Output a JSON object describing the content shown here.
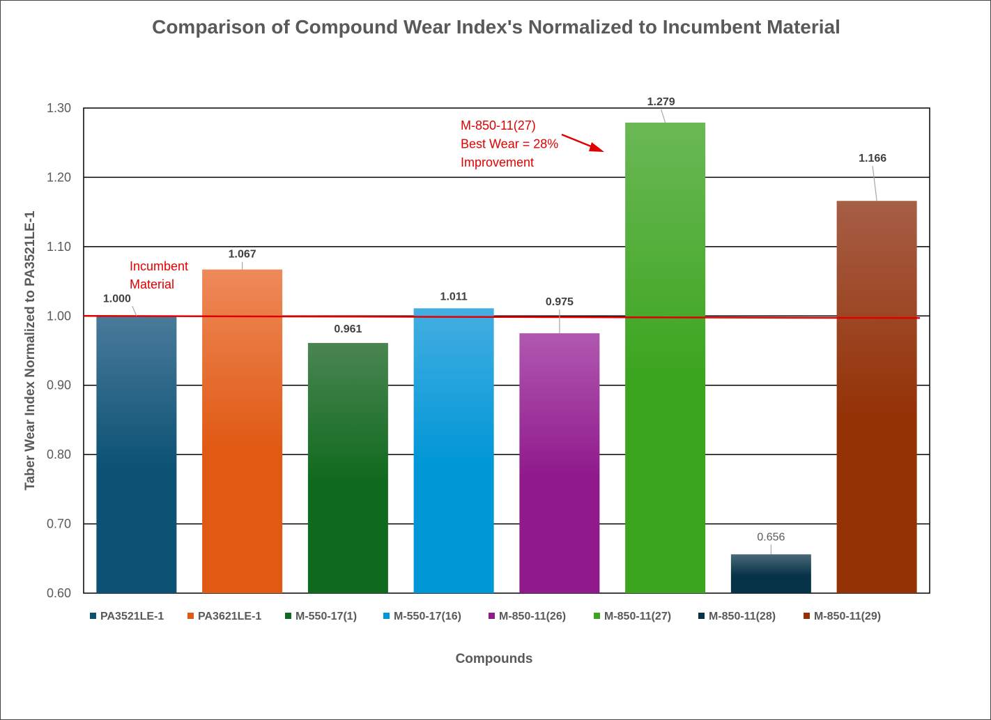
{
  "chart_data": {
    "type": "bar",
    "title": "Comparison of Compound Wear Index's Normalized to Incumbent Material",
    "xlabel": "Compounds",
    "ylabel": "Taber Wear Index Normalized to PA3521LE-1",
    "ylim": [
      0.6,
      1.3
    ],
    "yticks": [
      "0.60",
      "0.70",
      "0.80",
      "0.90",
      "1.00",
      "1.10",
      "1.20",
      "1.30"
    ],
    "grid": true,
    "legend_position": "bottom",
    "reference_line": 1.0,
    "categories": [
      "PA3521LE-1",
      "PA3621LE-1",
      "M-550-17(1)",
      "M-550-17(16)",
      "M-850-11(26)",
      "M-850-11(27)",
      "M-850-11(28)",
      "M-850-11(29)"
    ],
    "values": [
      1.0,
      1.067,
      0.961,
      1.011,
      0.975,
      1.279,
      0.656,
      1.166
    ],
    "data_labels": [
      "1.000",
      "1.067",
      "0.961",
      "1.011",
      "0.975",
      "1.279",
      "0.656",
      "1.166"
    ],
    "colors": [
      [
        "#4a7a9a",
        "#0b5274"
      ],
      [
        "#ee8a5a",
        "#e05a14"
      ],
      [
        "#4a8552",
        "#106a1e"
      ],
      [
        "#44aee2",
        "#0097d6"
      ],
      [
        "#b058b0",
        "#901a8c"
      ],
      [
        "#6ab855",
        "#3ba51e"
      ],
      [
        "#4a6878",
        "#073348"
      ],
      [
        "#a65e46",
        "#943206"
      ]
    ],
    "annotations": {
      "incumbent": [
        "Incumbent",
        "Material"
      ],
      "best": [
        "M-850-11(27)",
        "Best Wear = 28%",
        "Improvement"
      ]
    },
    "annotation_color": "#e00000"
  }
}
